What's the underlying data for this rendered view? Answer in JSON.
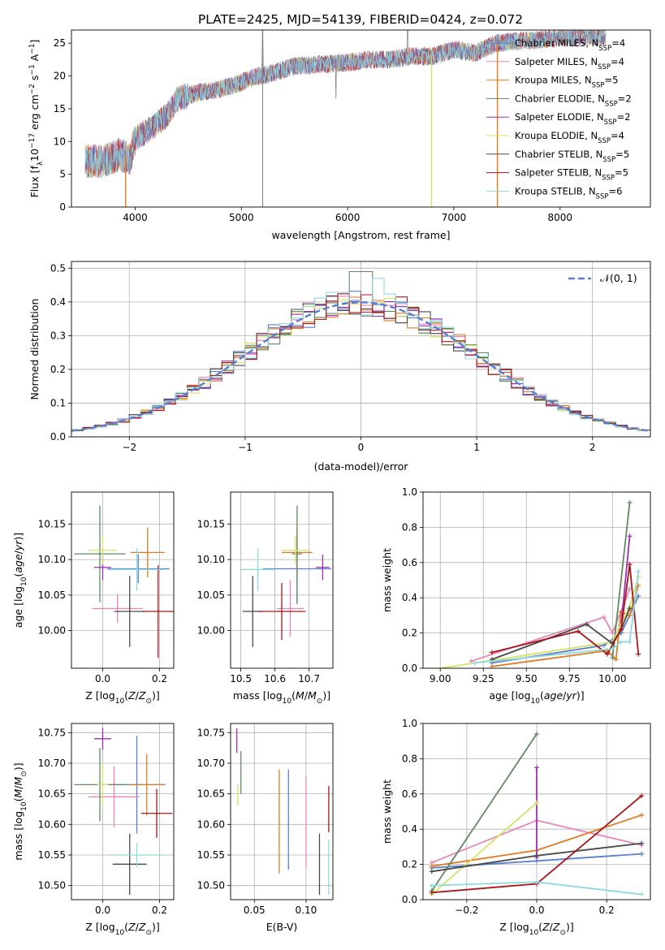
{
  "title": "PLATE=2425, MJD=54139, FIBERID=0424, z=0.072",
  "colors": [
    "#5a7fd1",
    "#e886b8",
    "#e07b24",
    "#5f8a61",
    "#9b2fb5",
    "#d6e265",
    "#4a4a4a",
    "#a8181c",
    "#8fd9dd"
  ],
  "legend": {
    "models": [
      {
        "name": "Chabrier MILES",
        "n": "4"
      },
      {
        "name": "Salpeter MILES",
        "n": "4"
      },
      {
        "name": "Kroupa MILES",
        "n": "5"
      },
      {
        "name": "Chabrier ELODIE",
        "n": "2"
      },
      {
        "name": "Salpeter ELODIE",
        "n": "2"
      },
      {
        "name": "Kroupa ELODIE",
        "n": "4"
      },
      {
        "name": "Chabrier STELIB",
        "n": "5"
      },
      {
        "name": "Salpeter STELIB",
        "n": "5"
      },
      {
        "name": "Kroupa STELIB",
        "n": "6"
      }
    ],
    "nssp_prefix": "N",
    "nssp_sub": "SSP",
    "gauss": "𝒩(0, 1)"
  },
  "chart_data": [
    {
      "type": "line",
      "panel": "spectrum",
      "xlabel": "wavelength [Angstrom, rest frame]",
      "ylabel": "Flux [fλ10⁻¹⁷ erg cm⁻² s⁻¹ A⁻¹]",
      "xlim": [
        3400,
        8850
      ],
      "ylim": [
        0,
        27
      ],
      "xticks": [
        "4000",
        "5000",
        "6000",
        "7000",
        "8000"
      ],
      "yticks": [
        "0",
        "5",
        "10",
        "15",
        "20",
        "25"
      ],
      "continuum": [
        [
          3530,
          7
        ],
        [
          3700,
          7
        ],
        [
          3850,
          8
        ],
        [
          3950,
          7.5
        ],
        [
          4000,
          10.5
        ],
        [
          4150,
          12
        ],
        [
          4300,
          14
        ],
        [
          4400,
          16.5
        ],
        [
          4600,
          17.5
        ],
        [
          4800,
          18
        ],
        [
          5000,
          19
        ],
        [
          5150,
          20
        ],
        [
          5200,
          20
        ],
        [
          5500,
          21.5
        ],
        [
          5800,
          21.8
        ],
        [
          6000,
          22
        ],
        [
          6200,
          22.5
        ],
        [
          6400,
          22.5
        ],
        [
          6600,
          23
        ],
        [
          6800,
          23
        ],
        [
          7000,
          24
        ],
        [
          7200,
          23.5
        ],
        [
          7400,
          25
        ],
        [
          7600,
          25.3
        ],
        [
          7800,
          25.5
        ],
        [
          8000,
          25.8
        ],
        [
          8200,
          26
        ],
        [
          8400,
          26
        ]
      ],
      "features": [
        {
          "x": 5200,
          "y": 28
        },
        {
          "x": 5890,
          "y": 16.5
        },
        {
          "x": 6563,
          "y": 29
        },
        {
          "x": 8220,
          "y": 29
        }
      ],
      "dropouts": [
        {
          "x": 3910,
          "color": 2
        },
        {
          "x": 6790,
          "color": 5
        },
        {
          "x": 7410,
          "color": 2
        }
      ]
    },
    {
      "type": "bar",
      "panel": "residual-histogram",
      "xlabel": "(data-model)/error",
      "ylabel": "Normed distribution",
      "xlim": [
        -2.5,
        2.5
      ],
      "ylim": [
        0,
        0.52
      ],
      "xticks": [
        "-2",
        "-1",
        "0",
        "1",
        "2"
      ],
      "yticks": [
        "0.0",
        "0.1",
        "0.2",
        "0.3",
        "0.4",
        "0.5"
      ],
      "bin_width": 0.1,
      "series_label": "𝒩(0, 1)"
    },
    {
      "type": "scatter",
      "panel": "age-vs-Z",
      "xlabel": "Z [log10(Z/Z⊙)]",
      "ylabel": "age  [log10(age/yr)]",
      "xlim": [
        -0.11,
        0.25
      ],
      "ylim": [
        9.947,
        10.195
      ],
      "xticks": [
        "0.0",
        "0.2"
      ],
      "yticks": [
        "10.00",
        "10.05",
        "10.10",
        "10.15"
      ],
      "points": [
        {
          "x": 0.125,
          "y": 10.087,
          "xerr": 0.11,
          "yerr": 0.02
        },
        {
          "x": 0.052,
          "y": 10.031,
          "xerr": 0.09,
          "yerr": 0.02
        },
        {
          "x": 0.158,
          "y": 10.11,
          "xerr": 0.06,
          "yerr": 0.035
        },
        {
          "x": -0.01,
          "y": 10.108,
          "xerr": 0.09,
          "yerr": 0.068
        },
        {
          "x": 0.0,
          "y": 10.089,
          "xerr": 0.03,
          "yerr": 0.018
        },
        {
          "x": 0.0,
          "y": 10.113,
          "xerr": 0.05,
          "yerr": 0.02
        },
        {
          "x": 0.095,
          "y": 10.027,
          "xerr": 0.055,
          "yerr": 0.05
        },
        {
          "x": 0.195,
          "y": 10.027,
          "xerr": 0.055,
          "yerr": 0.065
        },
        {
          "x": 0.12,
          "y": 10.086,
          "xerr": 0.1,
          "yerr": 0.03
        }
      ]
    },
    {
      "type": "scatter",
      "panel": "age-vs-mass",
      "xlabel": "mass [log10(M/M⊙)]",
      "ylabel": "",
      "xlim": [
        10.47,
        10.77
      ],
      "ylim": [
        9.947,
        10.195
      ],
      "xticks": [
        "10.5",
        "10.6",
        "10.7"
      ],
      "yticks": [
        "10.00",
        "10.05",
        "10.10",
        "10.15"
      ],
      "points": [
        {
          "x": 10.665,
          "y": 10.087,
          "xerr": 0.1,
          "yerr": 0.05
        },
        {
          "x": 10.645,
          "y": 10.031,
          "xerr": 0.04,
          "yerr": 0.04
        },
        {
          "x": 10.665,
          "y": 10.11,
          "xerr": 0.045,
          "yerr": 0.035
        },
        {
          "x": 10.665,
          "y": 10.108,
          "xerr": 0.015,
          "yerr": 0.068
        },
        {
          "x": 10.74,
          "y": 10.089,
          "xerr": 0.02,
          "yerr": 0.018
        },
        {
          "x": 10.66,
          "y": 10.113,
          "xerr": 0.04,
          "yerr": 0.02
        },
        {
          "x": 10.535,
          "y": 10.027,
          "xerr": 0.03,
          "yerr": 0.05
        },
        {
          "x": 10.62,
          "y": 10.027,
          "xerr": 0.07,
          "yerr": 0.04
        },
        {
          "x": 10.55,
          "y": 10.086,
          "xerr": 0.05,
          "yerr": 0.03
        }
      ]
    },
    {
      "type": "line",
      "panel": "mass-weight-vs-age",
      "xlabel": "age  [log10(age/yr)]",
      "ylabel": "mass weight",
      "xlim": [
        8.9,
        10.22
      ],
      "ylim": [
        0,
        1.0
      ],
      "xticks": [
        "9.00",
        "9.25",
        "9.50",
        "9.75",
        "10.00"
      ],
      "yticks": [
        "0.0",
        "0.2",
        "0.4",
        "0.6",
        "0.8",
        "1.0"
      ],
      "series": [
        {
          "color": 0,
          "x": [
            9.3,
            9.95,
            10.05,
            10.1,
            10.15
          ],
          "y": [
            0.03,
            0.13,
            0.2,
            0.3,
            0.41
          ]
        },
        {
          "color": 1,
          "x": [
            9.18,
            9.95,
            10.0,
            10.1
          ],
          "y": [
            0.04,
            0.29,
            0.2,
            0.45
          ]
        },
        {
          "color": 2,
          "x": [
            9.3,
            9.97,
            10.02,
            10.05,
            10.1,
            10.15
          ],
          "y": [
            0.01,
            0.1,
            0.05,
            0.32,
            0.3,
            0.47
          ]
        },
        {
          "color": 3,
          "x": [
            10.0,
            10.1
          ],
          "y": [
            0.06,
            0.94
          ]
        },
        {
          "color": 4,
          "x": [
            10.05,
            10.1
          ],
          "y": [
            0.24,
            0.75
          ]
        },
        {
          "color": 5,
          "x": [
            9.0,
            10.0,
            10.1,
            10.15
          ],
          "y": [
            0.0,
            0.15,
            0.35,
            0.52
          ]
        },
        {
          "color": 6,
          "x": [
            9.3,
            9.85,
            10.0,
            10.05,
            10.1
          ],
          "y": [
            0.05,
            0.25,
            0.14,
            0.22,
            0.34
          ]
        },
        {
          "color": 7,
          "x": [
            9.3,
            9.8,
            9.97,
            10.05,
            10.1,
            10.15
          ],
          "y": [
            0.09,
            0.21,
            0.08,
            0.22,
            0.59,
            0.08
          ]
        },
        {
          "color": 8,
          "x": [
            9.2,
            10.0,
            10.05,
            10.1,
            10.15
          ],
          "y": [
            0.03,
            0.11,
            0.15,
            0.15,
            0.55
          ]
        }
      ]
    },
    {
      "type": "scatter",
      "panel": "mass-vs-Z",
      "xlabel": "Z [log10(Z/Z⊙)]",
      "ylabel": "mass [log10(M/M⊙)]",
      "xlim": [
        -0.11,
        0.25
      ],
      "ylim": [
        10.477,
        10.765
      ],
      "xticks": [
        "0.0",
        "0.2"
      ],
      "yticks": [
        "10.50",
        "10.55",
        "10.60",
        "10.65",
        "10.70",
        "10.75"
      ],
      "points": [
        {
          "x": 0.12,
          "y": 10.665,
          "xerr": 0.1,
          "yerr": 0.08
        },
        {
          "x": 0.04,
          "y": 10.645,
          "xerr": 0.09,
          "yerr": 0.05
        },
        {
          "x": 0.155,
          "y": 10.665,
          "xerr": 0.06,
          "yerr": 0.05
        },
        {
          "x": -0.01,
          "y": 10.665,
          "xerr": 0.09,
          "yerr": 0.06
        },
        {
          "x": 0.0,
          "y": 10.74,
          "xerr": 0.03,
          "yerr": 0.018
        },
        {
          "x": 0.0,
          "y": 10.665,
          "xerr": 0.02,
          "yerr": 0.035
        },
        {
          "x": 0.095,
          "y": 10.535,
          "xerr": 0.06,
          "yerr": 0.05
        },
        {
          "x": 0.19,
          "y": 10.618,
          "xerr": 0.055,
          "yerr": 0.04
        },
        {
          "x": 0.12,
          "y": 10.55,
          "xerr": 0.1,
          "yerr": 0.02
        }
      ]
    },
    {
      "type": "scatter",
      "panel": "mass-vs-ebv",
      "xlabel": "E(B-V)",
      "ylabel": "",
      "xlim": [
        0.027,
        0.126
      ],
      "ylim": [
        10.477,
        10.765
      ],
      "xticks": [
        "0.05",
        "0.10"
      ],
      "yticks": [
        "10.50",
        "10.55",
        "10.60",
        "10.65",
        "10.70",
        "10.75"
      ],
      "points": [
        {
          "x": 0.083,
          "y": 10.608,
          "xerr": 0,
          "yerr": 0.082
        },
        {
          "x": 0.1,
          "y": 10.605,
          "xerr": 0,
          "yerr": 0.075
        },
        {
          "x": 0.074,
          "y": 10.605,
          "xerr": 0,
          "yerr": 0.085
        },
        {
          "x": 0.037,
          "y": 10.685,
          "xerr": 0,
          "yerr": 0.035
        },
        {
          "x": 0.033,
          "y": 10.737,
          "xerr": 0,
          "yerr": 0.02
        },
        {
          "x": 0.034,
          "y": 10.648,
          "xerr": 0,
          "yerr": 0.017
        },
        {
          "x": 0.113,
          "y": 10.535,
          "xerr": 0,
          "yerr": 0.05
        },
        {
          "x": 0.122,
          "y": 10.625,
          "xerr": 0,
          "yerr": 0.038
        },
        {
          "x": 0.122,
          "y": 10.53,
          "xerr": 0,
          "yerr": 0.045
        }
      ]
    },
    {
      "type": "line",
      "panel": "mass-weight-vs-Z",
      "xlabel": "Z [log10(Z/Z⊙)]",
      "ylabel": "mass weight",
      "xlim": [
        -0.325,
        0.325
      ],
      "ylim": [
        0,
        1.0
      ],
      "xticks": [
        "-0.2",
        "0.0",
        "0.2"
      ],
      "yticks": [
        "0.0",
        "0.2",
        "0.4",
        "0.6",
        "0.8",
        "1.0"
      ],
      "series": [
        {
          "color": 0,
          "x": [
            -0.3,
            0.0,
            0.3
          ],
          "y": [
            0.18,
            0.22,
            0.26
          ]
        },
        {
          "color": 1,
          "x": [
            -0.3,
            0.0,
            0.3
          ],
          "y": [
            0.21,
            0.45,
            0.31
          ]
        },
        {
          "color": 2,
          "x": [
            -0.3,
            0.0,
            0.3
          ],
          "y": [
            0.19,
            0.28,
            0.48
          ]
        },
        {
          "color": 3,
          "x": [
            -0.3,
            0.0
          ],
          "y": [
            0.05,
            0.94
          ]
        },
        {
          "color": 4,
          "x": [
            0.0,
            0.0
          ],
          "y": [
            0.24,
            0.75
          ]
        },
        {
          "color": 5,
          "x": [
            -0.3,
            0.0
          ],
          "y": [
            0.03,
            0.55
          ]
        },
        {
          "color": 6,
          "x": [
            -0.3,
            0.0,
            0.3
          ],
          "y": [
            0.16,
            0.25,
            0.32
          ]
        },
        {
          "color": 7,
          "x": [
            -0.3,
            0.0,
            0.3
          ],
          "y": [
            0.04,
            0.09,
            0.59
          ]
        },
        {
          "color": 8,
          "x": [
            -0.3,
            0.0,
            0.3
          ],
          "y": [
            0.08,
            0.1,
            0.03
          ]
        }
      ]
    }
  ]
}
